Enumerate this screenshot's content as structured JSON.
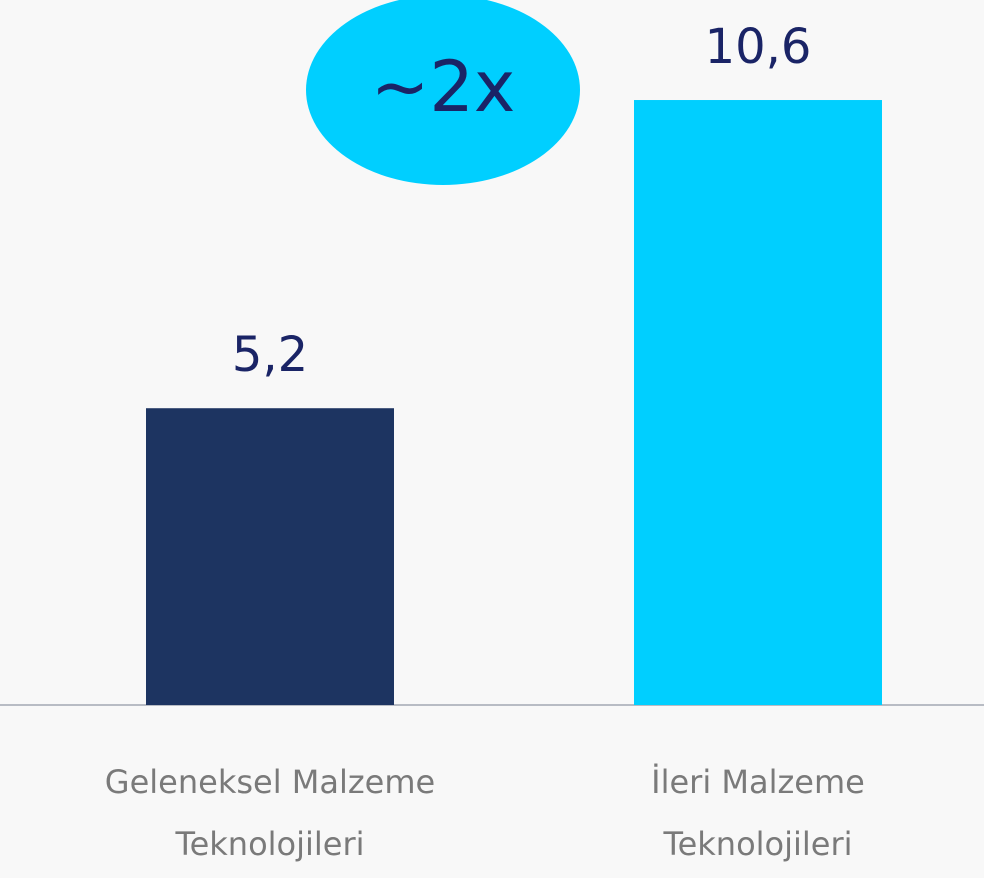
{
  "chart_data": {
    "type": "bar",
    "categories": [
      "Geleneksel Malzeme Teknolojileri",
      "İleri Malzeme Teknolojileri"
    ],
    "values": [
      5.2,
      10.6
    ],
    "value_labels": [
      "5,2",
      "10,6"
    ],
    "colors": [
      "#1d3461",
      "#00cfff"
    ],
    "ylim": [
      0,
      12.3
    ],
    "annotation": "~2x"
  }
}
